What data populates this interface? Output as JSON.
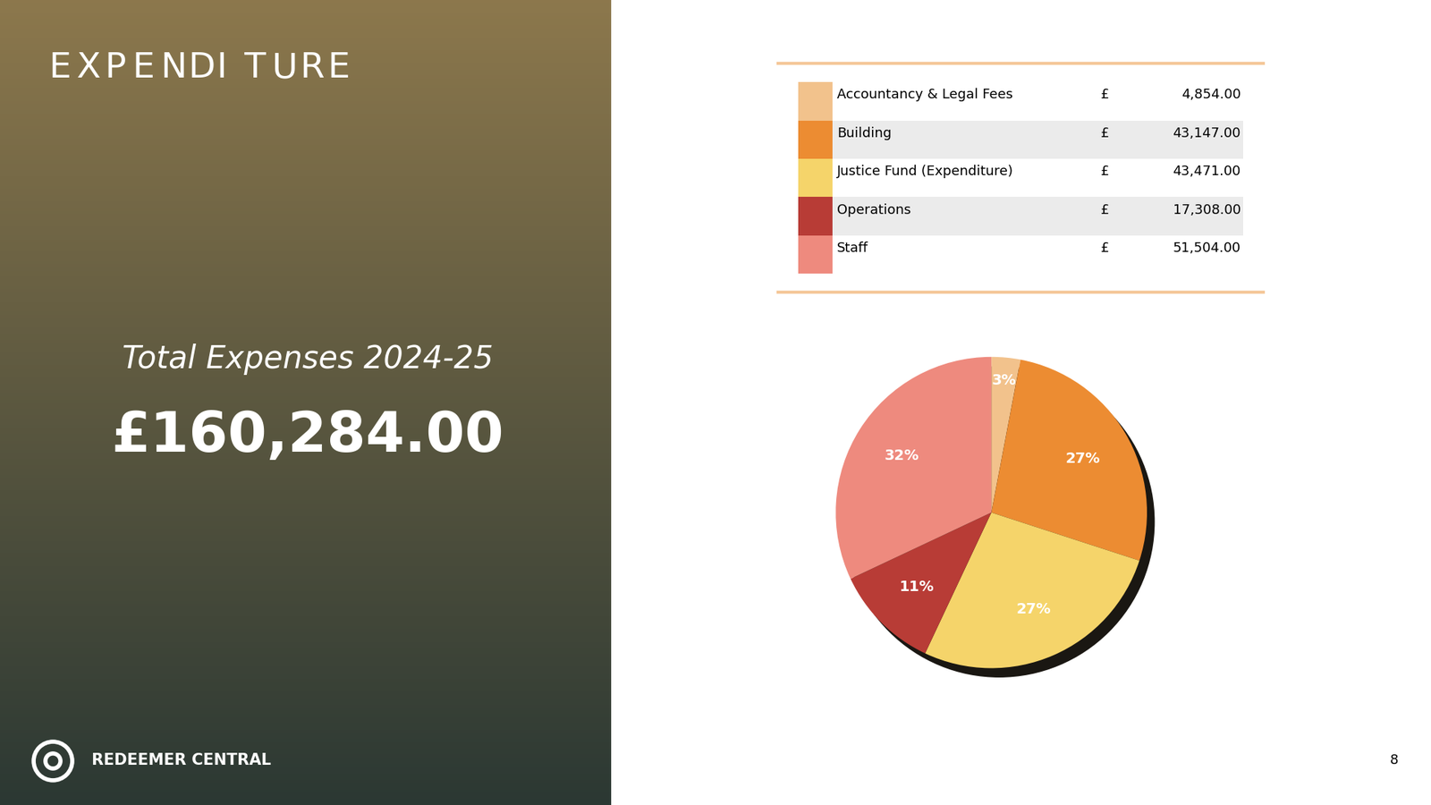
{
  "slide": {
    "title": "EXPENDITURE",
    "subtitle": "Total Expenses 2024-25",
    "total": "£160,284.00",
    "brand": "REDEEMER CENTRAL",
    "page": "8"
  },
  "table": {
    "currency": "£",
    "amounts": [
      "4,854.00",
      "43,147.00",
      "43,471.00",
      "17,308.00",
      "51,504.00"
    ]
  },
  "chart_data": {
    "type": "pie",
    "categories": [
      "Accountancy & Legal Fees",
      "Building",
      "Justice Fund (Expenditure)",
      "Operations",
      "Staff"
    ],
    "values": [
      3,
      27,
      27,
      11,
      32
    ],
    "value_labels": [
      "3%",
      "27%",
      "27%",
      "11%",
      "32%"
    ],
    "colors": [
      "#f2c28c",
      "#ec8c32",
      "#f5d46a",
      "#b83c36",
      "#ee8a7e"
    ],
    "data_labels": true
  }
}
